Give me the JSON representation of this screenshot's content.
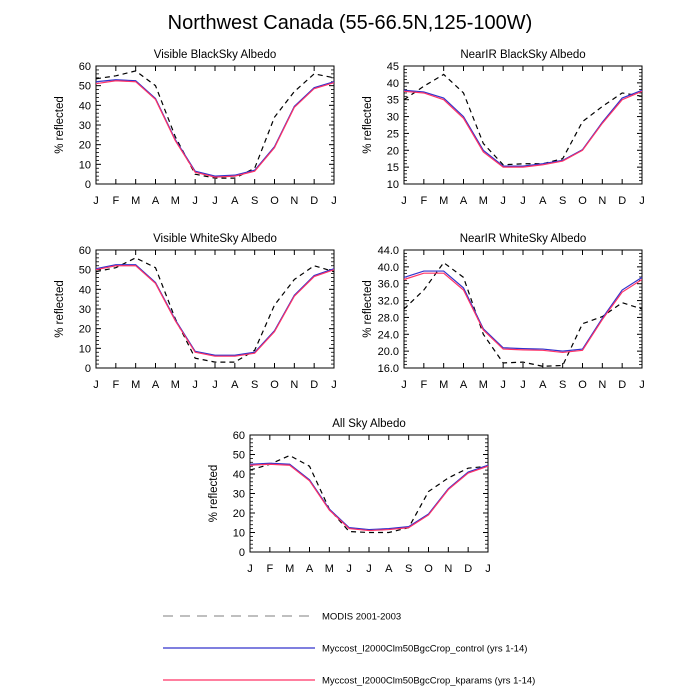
{
  "page_title": "Northwest Canada (55-66.5N,125-100W)",
  "legend": [
    {
      "name": "MODIS 2001-2003",
      "color": "#000000",
      "dash": true
    },
    {
      "name": "Myccost_I2000Clm50BgcCrop_control (yrs 1-14)",
      "color": "#3333cc",
      "dash": false
    },
    {
      "name": "Myccost_I2000Clm50BgcCrop_kparams (yrs 1-14)",
      "color": "#ff3366",
      "dash": false
    }
  ],
  "chart_data": [
    {
      "type": "line",
      "title": "Visible BlackSky Albedo",
      "ylabel": "% reflected",
      "xlabel": "",
      "categories": [
        "J",
        "F",
        "M",
        "A",
        "M",
        "J",
        "J",
        "A",
        "S",
        "O",
        "N",
        "D",
        "J"
      ],
      "ylim": [
        0,
        60
      ],
      "yticks": [
        0,
        10,
        20,
        30,
        40,
        50,
        60
      ],
      "ytick_labels": [
        "0",
        "10",
        "20",
        "30",
        "40",
        "50",
        "60"
      ],
      "series": [
        {
          "values": [
            53.5,
            55,
            57.5,
            50,
            24,
            5,
            3,
            3,
            8,
            34,
            47,
            56,
            54
          ]
        },
        {
          "values": [
            51,
            52.5,
            52,
            43,
            22,
            6,
            3.5,
            4,
            6.5,
            18.5,
            39,
            48.5,
            51.5
          ]
        },
        {
          "values": [
            52,
            53,
            52.5,
            43.5,
            22.5,
            6.5,
            4,
            4.5,
            7,
            19,
            39.5,
            49,
            52
          ]
        }
      ]
    },
    {
      "type": "line",
      "title": "NearIR BlackSky Albedo",
      "ylabel": "% reflected",
      "xlabel": "",
      "categories": [
        "J",
        "F",
        "M",
        "A",
        "M",
        "J",
        "J",
        "A",
        "S",
        "O",
        "N",
        "D",
        "J"
      ],
      "ylim": [
        10,
        45
      ],
      "yticks": [
        10,
        15,
        20,
        25,
        30,
        35,
        40,
        45
      ],
      "ytick_labels": [
        "10",
        "15",
        "20",
        "25",
        "30",
        "35",
        "40",
        "45"
      ],
      "series": [
        {
          "values": [
            35,
            39,
            42.5,
            37,
            22,
            15.7,
            16,
            16,
            17.5,
            28.5,
            33,
            37,
            36
          ]
        },
        {
          "values": [
            37.5,
            37,
            35,
            29.5,
            19.5,
            15,
            15,
            15.7,
            16.8,
            20,
            28,
            35,
            37.5
          ]
        },
        {
          "values": [
            37.8,
            37.3,
            35.5,
            30,
            20,
            15.3,
            15.3,
            16,
            17,
            20.2,
            28.3,
            35.5,
            37.8
          ]
        }
      ]
    },
    {
      "type": "line",
      "title": "Visible WhiteSky Albedo",
      "ylabel": "% reflected",
      "xlabel": "",
      "categories": [
        "J",
        "F",
        "M",
        "A",
        "M",
        "J",
        "J",
        "A",
        "S",
        "O",
        "N",
        "D",
        "J"
      ],
      "ylim": [
        0,
        60
      ],
      "yticks": [
        0,
        10,
        20,
        30,
        40,
        50,
        60
      ],
      "ytick_labels": [
        "0",
        "10",
        "20",
        "30",
        "40",
        "50",
        "60"
      ],
      "series": [
        {
          "values": [
            49,
            51,
            56,
            51,
            25,
            5,
            3,
            3,
            9,
            32,
            45,
            52,
            49
          ]
        },
        {
          "values": [
            50,
            52,
            52,
            43,
            24,
            8,
            6,
            6,
            7.5,
            18.5,
            36.5,
            46.5,
            50
          ]
        },
        {
          "values": [
            50.5,
            52.5,
            52.5,
            43.5,
            24.5,
            8.5,
            6.5,
            6.5,
            8,
            19,
            37,
            47,
            50.5
          ]
        }
      ]
    },
    {
      "type": "line",
      "title": "NearIR WhiteSky Albedo",
      "ylabel": "% reflected",
      "xlabel": "",
      "categories": [
        "J",
        "F",
        "M",
        "A",
        "M",
        "J",
        "J",
        "A",
        "S",
        "O",
        "N",
        "D",
        "J"
      ],
      "ylim": [
        16,
        44
      ],
      "yticks": [
        16,
        20,
        24,
        28,
        32,
        36,
        40,
        44
      ],
      "ytick_labels": [
        "16.0",
        "20.0",
        "24.0",
        "28.0",
        "32.0",
        "36.0",
        "40.0",
        "44.0"
      ],
      "series": [
        {
          "values": [
            30,
            34.5,
            41,
            37.5,
            24,
            17.2,
            17.4,
            16.4,
            16.6,
            26.5,
            28.2,
            31.5,
            30
          ]
        },
        {
          "values": [
            37,
            38.5,
            38.5,
            34.5,
            25,
            20.5,
            20.3,
            20.2,
            19.7,
            20.2,
            27.5,
            34,
            37
          ]
        },
        {
          "values": [
            37.5,
            39,
            39,
            35,
            25.3,
            20.8,
            20.6,
            20.5,
            20,
            20.5,
            27.8,
            34.5,
            37.5
          ]
        }
      ]
    },
    {
      "type": "line",
      "title": "All Sky Albedo",
      "ylabel": "% reflected",
      "xlabel": "",
      "categories": [
        "J",
        "F",
        "M",
        "A",
        "M",
        "J",
        "J",
        "A",
        "S",
        "O",
        "N",
        "D",
        "J"
      ],
      "ylim": [
        0,
        60
      ],
      "yticks": [
        0,
        10,
        20,
        30,
        40,
        50,
        60
      ],
      "ytick_labels": [
        "0",
        "10",
        "20",
        "30",
        "40",
        "50",
        "60"
      ],
      "series": [
        {
          "values": [
            42,
            45,
            49.5,
            44,
            22,
            10.5,
            10,
            10,
            12.5,
            31,
            38,
            43,
            44
          ]
        },
        {
          "values": [
            44.5,
            45,
            44.5,
            36.5,
            21.5,
            12,
            11,
            11.5,
            12.5,
            19,
            32,
            40.5,
            44
          ]
        },
        {
          "values": [
            45,
            45.5,
            45,
            37,
            22,
            12.5,
            11.5,
            12,
            13,
            19.5,
            32.5,
            41,
            44.5
          ]
        }
      ]
    }
  ]
}
